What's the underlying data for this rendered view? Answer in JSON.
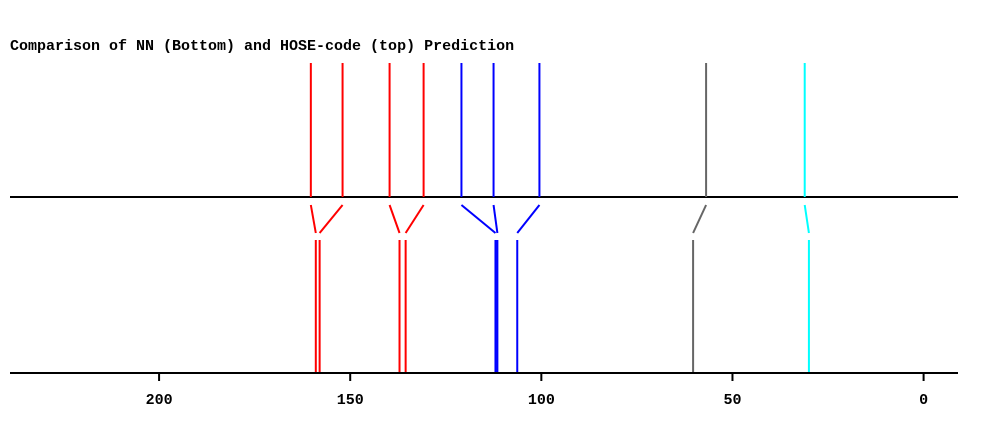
{
  "chart_data": {
    "type": "shift-comparison",
    "title": "Comparison of NN (Bottom) and HOSE-code (top) Prediction",
    "xlim": [
      239,
      -9
    ],
    "xticks": [
      200,
      150,
      100,
      50,
      0
    ],
    "peaks": [
      {
        "color": "#ff0000",
        "top": 160.3,
        "bottom": 159.0
      },
      {
        "color": "#ff0000",
        "top": 152.0,
        "bottom": 158.0
      },
      {
        "color": "#ff0000",
        "top": 139.7,
        "bottom": 137.1
      },
      {
        "color": "#ff0000",
        "top": 130.8,
        "bottom": 135.5
      },
      {
        "color": "#0000ff",
        "top": 120.9,
        "bottom": 112.0
      },
      {
        "color": "#0000ff",
        "top": 112.5,
        "bottom": 111.5
      },
      {
        "color": "#0000ff",
        "top": 100.5,
        "bottom": 106.3
      },
      {
        "color": "#666666",
        "top": 56.9,
        "bottom": 60.3
      },
      {
        "color": "#00ffff",
        "top": 31.1,
        "bottom": 30.0
      }
    ]
  }
}
